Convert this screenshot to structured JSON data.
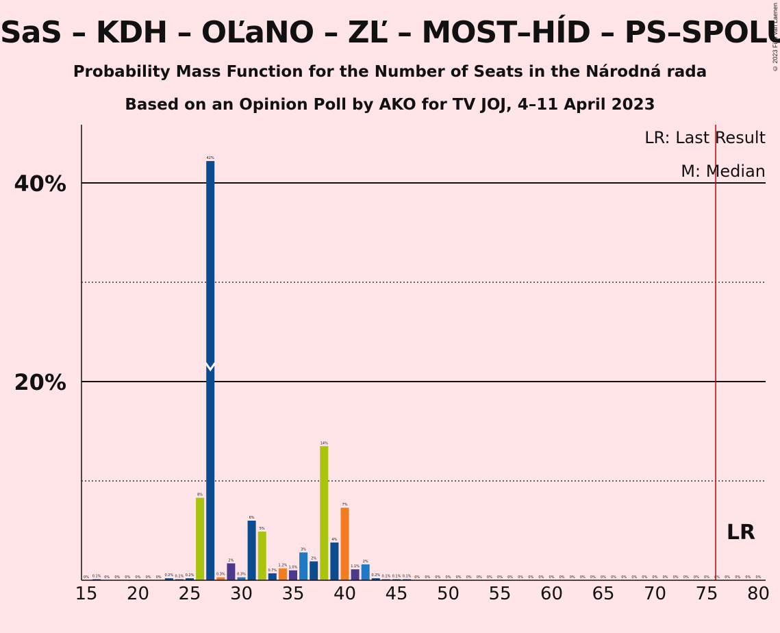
{
  "header": {
    "title": "SaS – KDH – OĽaNO – ZĽ – MOST–HÍD – PS–SPOLU",
    "subtitle1": "Probability Mass Function for the Number of Seats in the Národná rada",
    "subtitle2": "Based on an Opinion Poll by AKO for TV JOJ, 4–11 April 2023",
    "copyright": "© 2023 Filip van Laenen"
  },
  "legend": {
    "last_result": "LR: Last Result",
    "median": "M: Median",
    "lr_marker": "LR"
  },
  "colors": {
    "background": "#ffe4e8",
    "last_result_line": "#cc0000",
    "bar_palette": [
      "#0b4b8f",
      "#a8c40e",
      "#4b3a8c",
      "#f47c20",
      "#1f79c4",
      "#0b4b8f"
    ]
  },
  "chart_data": {
    "type": "bar",
    "xlabel": "",
    "ylabel": "",
    "xlim": [
      15,
      80
    ],
    "ylim": [
      0,
      46
    ],
    "x_ticks": [
      15,
      20,
      25,
      30,
      35,
      40,
      45,
      50,
      55,
      60,
      65,
      70,
      75,
      80
    ],
    "y_ticks": [
      {
        "value": 20,
        "label": "20%"
      },
      {
        "value": 40,
        "label": "40%"
      }
    ],
    "dotted_gridlines": [
      10,
      30
    ],
    "grid": true,
    "median": 27,
    "last_result": 76,
    "bars": [
      {
        "x": 16,
        "value": 0.1,
        "label": "0.1%",
        "color": "#0b4b8f"
      },
      {
        "x": 23,
        "value": 0.2,
        "label": "0.2%",
        "color": "#0b4b8f"
      },
      {
        "x": 24,
        "value": 0.1,
        "label": "0.1%",
        "color": "#0b4b8f"
      },
      {
        "x": 25,
        "value": 0.2,
        "label": "0.2%",
        "color": "#0b4b8f"
      },
      {
        "x": 26,
        "value": 8.3,
        "label": "8%",
        "color": "#a8c40e"
      },
      {
        "x": 27,
        "value": 42.2,
        "label": "42%",
        "color": "#0b4b8f"
      },
      {
        "x": 28,
        "value": 0.3,
        "label": "0.3%",
        "color": "#f47c20"
      },
      {
        "x": 29,
        "value": 1.7,
        "label": "2%",
        "color": "#4b3a8c"
      },
      {
        "x": 30,
        "value": 0.3,
        "label": "0.3%",
        "color": "#1f79c4"
      },
      {
        "x": 31,
        "value": 6.0,
        "label": "6%",
        "color": "#0b4b8f"
      },
      {
        "x": 32,
        "value": 4.9,
        "label": "5%",
        "color": "#a8c40e"
      },
      {
        "x": 33,
        "value": 0.7,
        "label": "0.7%",
        "color": "#0b4b8f"
      },
      {
        "x": 34,
        "value": 1.2,
        "label": "1.2%",
        "color": "#f47c20"
      },
      {
        "x": 35,
        "value": 1.0,
        "label": "1.0%",
        "color": "#4b3a8c"
      },
      {
        "x": 36,
        "value": 2.8,
        "label": "3%",
        "color": "#1f79c4"
      },
      {
        "x": 37,
        "value": 1.9,
        "label": "2%",
        "color": "#0b4b8f"
      },
      {
        "x": 38,
        "value": 13.5,
        "label": "14%",
        "color": "#a8c40e"
      },
      {
        "x": 39,
        "value": 3.8,
        "label": "4%",
        "color": "#0b4b8f"
      },
      {
        "x": 40,
        "value": 7.3,
        "label": "7%",
        "color": "#f47c20"
      },
      {
        "x": 41,
        "value": 1.1,
        "label": "1.1%",
        "color": "#4b3a8c"
      },
      {
        "x": 42,
        "value": 1.6,
        "label": "2%",
        "color": "#1f79c4"
      },
      {
        "x": 43,
        "value": 0.2,
        "label": "0.2%",
        "color": "#0b4b8f"
      },
      {
        "x": 44,
        "value": 0.1,
        "label": "0.1%",
        "color": "#0b4b8f"
      },
      {
        "x": 45,
        "value": 0.1,
        "label": "0.1%",
        "color": "#0b4b8f"
      },
      {
        "x": 46,
        "value": 0.1,
        "label": "0.1%",
        "color": "#0b4b8f"
      }
    ],
    "zero_labels": {
      "x": [
        15,
        17,
        18,
        19,
        20,
        21,
        22,
        47,
        48,
        49,
        50,
        51,
        52,
        53,
        54,
        55,
        56,
        57,
        58,
        59,
        60,
        61,
        62,
        63,
        64,
        65,
        66,
        67,
        68,
        69,
        70,
        71,
        72,
        73,
        74,
        75,
        76,
        77,
        78,
        79,
        80
      ],
      "label": "0%"
    }
  }
}
